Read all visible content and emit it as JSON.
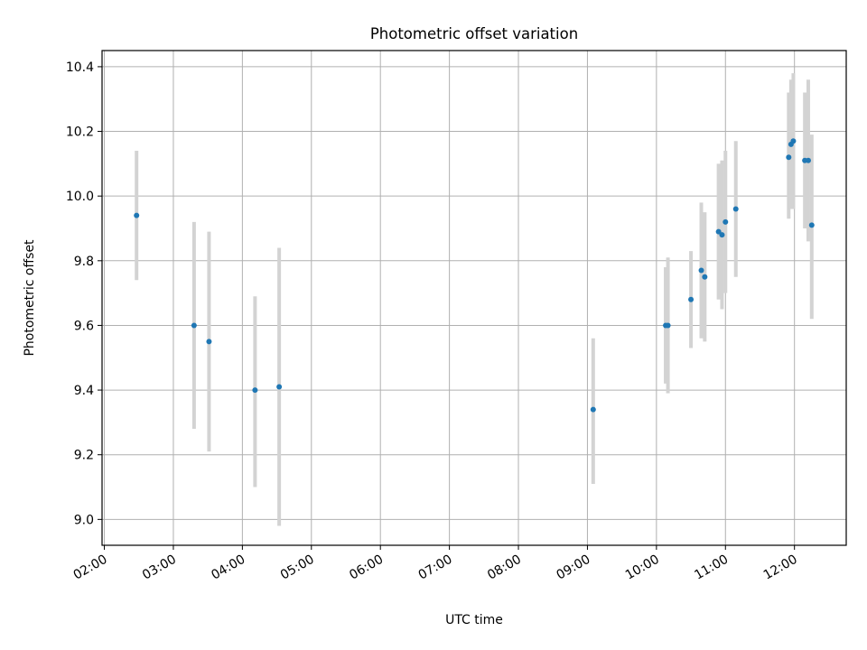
{
  "chart_data": {
    "type": "scatter",
    "title": "Photometric offset variation",
    "xlabel": "UTC time",
    "ylabel": "Photometric offset",
    "xlim": [
      "01:58",
      "12:45"
    ],
    "ylim": [
      8.92,
      10.45
    ],
    "x_ticks": [
      "02:00",
      "03:00",
      "04:00",
      "05:00",
      "06:00",
      "07:00",
      "08:00",
      "09:00",
      "10:00",
      "11:00",
      "12:00"
    ],
    "y_ticks": [
      9.0,
      9.2,
      9.4,
      9.6,
      9.8,
      10.0,
      10.2,
      10.4
    ],
    "y_tick_labels": [
      "9.0",
      "9.2",
      "9.4",
      "9.6",
      "9.8",
      "10.0",
      "10.2",
      "10.4"
    ],
    "grid": true,
    "colors": {
      "points": "#1f77b4",
      "error_bars": "#d3d3d3",
      "grid": "#b0b0b0"
    },
    "points": [
      {
        "x": "02:28",
        "y": 9.94,
        "err_low": 9.74,
        "err_high": 10.14
      },
      {
        "x": "03:18",
        "y": 9.6,
        "err_low": 9.28,
        "err_high": 9.92
      },
      {
        "x": "03:31",
        "y": 9.55,
        "err_low": 9.21,
        "err_high": 9.89
      },
      {
        "x": "04:11",
        "y": 9.4,
        "err_low": 9.1,
        "err_high": 9.69
      },
      {
        "x": "04:32",
        "y": 9.41,
        "err_low": 8.98,
        "err_high": 9.84
      },
      {
        "x": "09:05",
        "y": 9.34,
        "err_low": 9.11,
        "err_high": 9.56
      },
      {
        "x": "10:08",
        "y": 9.6,
        "err_low": 9.42,
        "err_high": 9.78
      },
      {
        "x": "10:10",
        "y": 9.6,
        "err_low": 9.39,
        "err_high": 9.81
      },
      {
        "x": "10:30",
        "y": 9.68,
        "err_low": 9.53,
        "err_high": 9.83
      },
      {
        "x": "10:39",
        "y": 9.77,
        "err_low": 9.56,
        "err_high": 9.98
      },
      {
        "x": "10:42",
        "y": 9.75,
        "err_low": 9.55,
        "err_high": 9.95
      },
      {
        "x": "10:54",
        "y": 9.89,
        "err_low": 9.68,
        "err_high": 10.1
      },
      {
        "x": "10:57",
        "y": 9.88,
        "err_low": 9.65,
        "err_high": 10.11
      },
      {
        "x": "11:00",
        "y": 9.92,
        "err_low": 9.7,
        "err_high": 10.14
      },
      {
        "x": "11:09",
        "y": 9.96,
        "err_low": 9.75,
        "err_high": 10.17
      },
      {
        "x": "11:55",
        "y": 10.12,
        "err_low": 9.93,
        "err_high": 10.32
      },
      {
        "x": "11:57",
        "y": 10.16,
        "err_low": 9.96,
        "err_high": 10.36
      },
      {
        "x": "11:59",
        "y": 10.17,
        "err_low": 9.96,
        "err_high": 10.38
      },
      {
        "x": "12:09",
        "y": 10.11,
        "err_low": 9.9,
        "err_high": 10.32
      },
      {
        "x": "12:12",
        "y": 10.11,
        "err_low": 9.86,
        "err_high": 10.36
      },
      {
        "x": "12:15",
        "y": 9.91,
        "err_low": 9.62,
        "err_high": 10.19
      }
    ]
  }
}
